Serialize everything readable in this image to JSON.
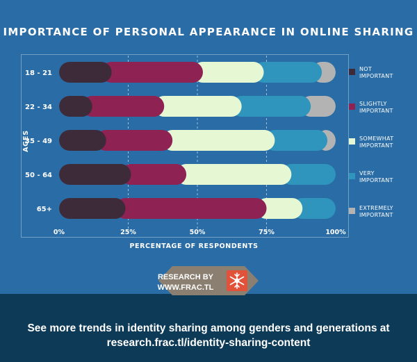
{
  "colors": {
    "background": "#2a6da6",
    "footer": "#0d3a57",
    "badge": "#8a7f70",
    "badge_accent": "#e0523a",
    "not_important": "#3d2b3a",
    "slightly_important": "#8e2253",
    "somewhat_important": "#e6f7d4",
    "very_important": "#2f95bd",
    "extremely_important": "#b3b3b3"
  },
  "badge": {
    "line1": "RESEARCH BY",
    "line2": "WWW.FRAC.TL",
    "icon": "snowflake-icon"
  },
  "footer": {
    "line1": "See more trends in identity sharing among genders and generations at",
    "line2": "research.frac.tl/identity-sharing-content"
  },
  "chart_data": {
    "type": "bar",
    "orientation": "horizontal",
    "stacked": true,
    "title": "IMPORTANCE OF PERSONAL APPEARANCE IN ONLINE SHARING",
    "xlabel": "PERCENTAGE OF RESPONDENTS",
    "ylabel": "AGES",
    "xlim": [
      0,
      100
    ],
    "x_ticks": [
      "0%",
      "25%",
      "50%",
      "75%",
      "100%"
    ],
    "categories": [
      "18 - 21",
      "22 - 34",
      "35 - 49",
      "50 - 64",
      "65+"
    ],
    "series": [
      {
        "name": "NOT IMPORTANT",
        "color": "#3d2b3a",
        "values": [
          19,
          12,
          17,
          26,
          24
        ]
      },
      {
        "name": "SLIGHTLY IMPORTANT",
        "color": "#8e2253",
        "values": [
          33,
          26,
          24,
          20,
          51
        ]
      },
      {
        "name": "SOMEWHAT IMPORTANT",
        "color": "#e6f7d4",
        "values": [
          22,
          28,
          37,
          38,
          13
        ]
      },
      {
        "name": "VERY IMPORTANT",
        "color": "#2f95bd",
        "values": [
          21,
          25,
          19,
          16,
          12
        ]
      },
      {
        "name": "EXTREMELY IMPORTANT",
        "color": "#b3b3b3",
        "values": [
          5,
          9,
          3,
          0,
          0
        ]
      }
    ],
    "legend": [
      {
        "line1": "NOT",
        "line2": "IMPORTANT"
      },
      {
        "line1": "SLIGHTLY",
        "line2": "IMPORTANT"
      },
      {
        "line1": "SOMEWHAT",
        "line2": "IMPORTANT"
      },
      {
        "line1": "VERY",
        "line2": "IMPORTANT"
      },
      {
        "line1": "EXTREMELY",
        "line2": "IMPORTANT"
      }
    ],
    "legend_position": "right"
  }
}
